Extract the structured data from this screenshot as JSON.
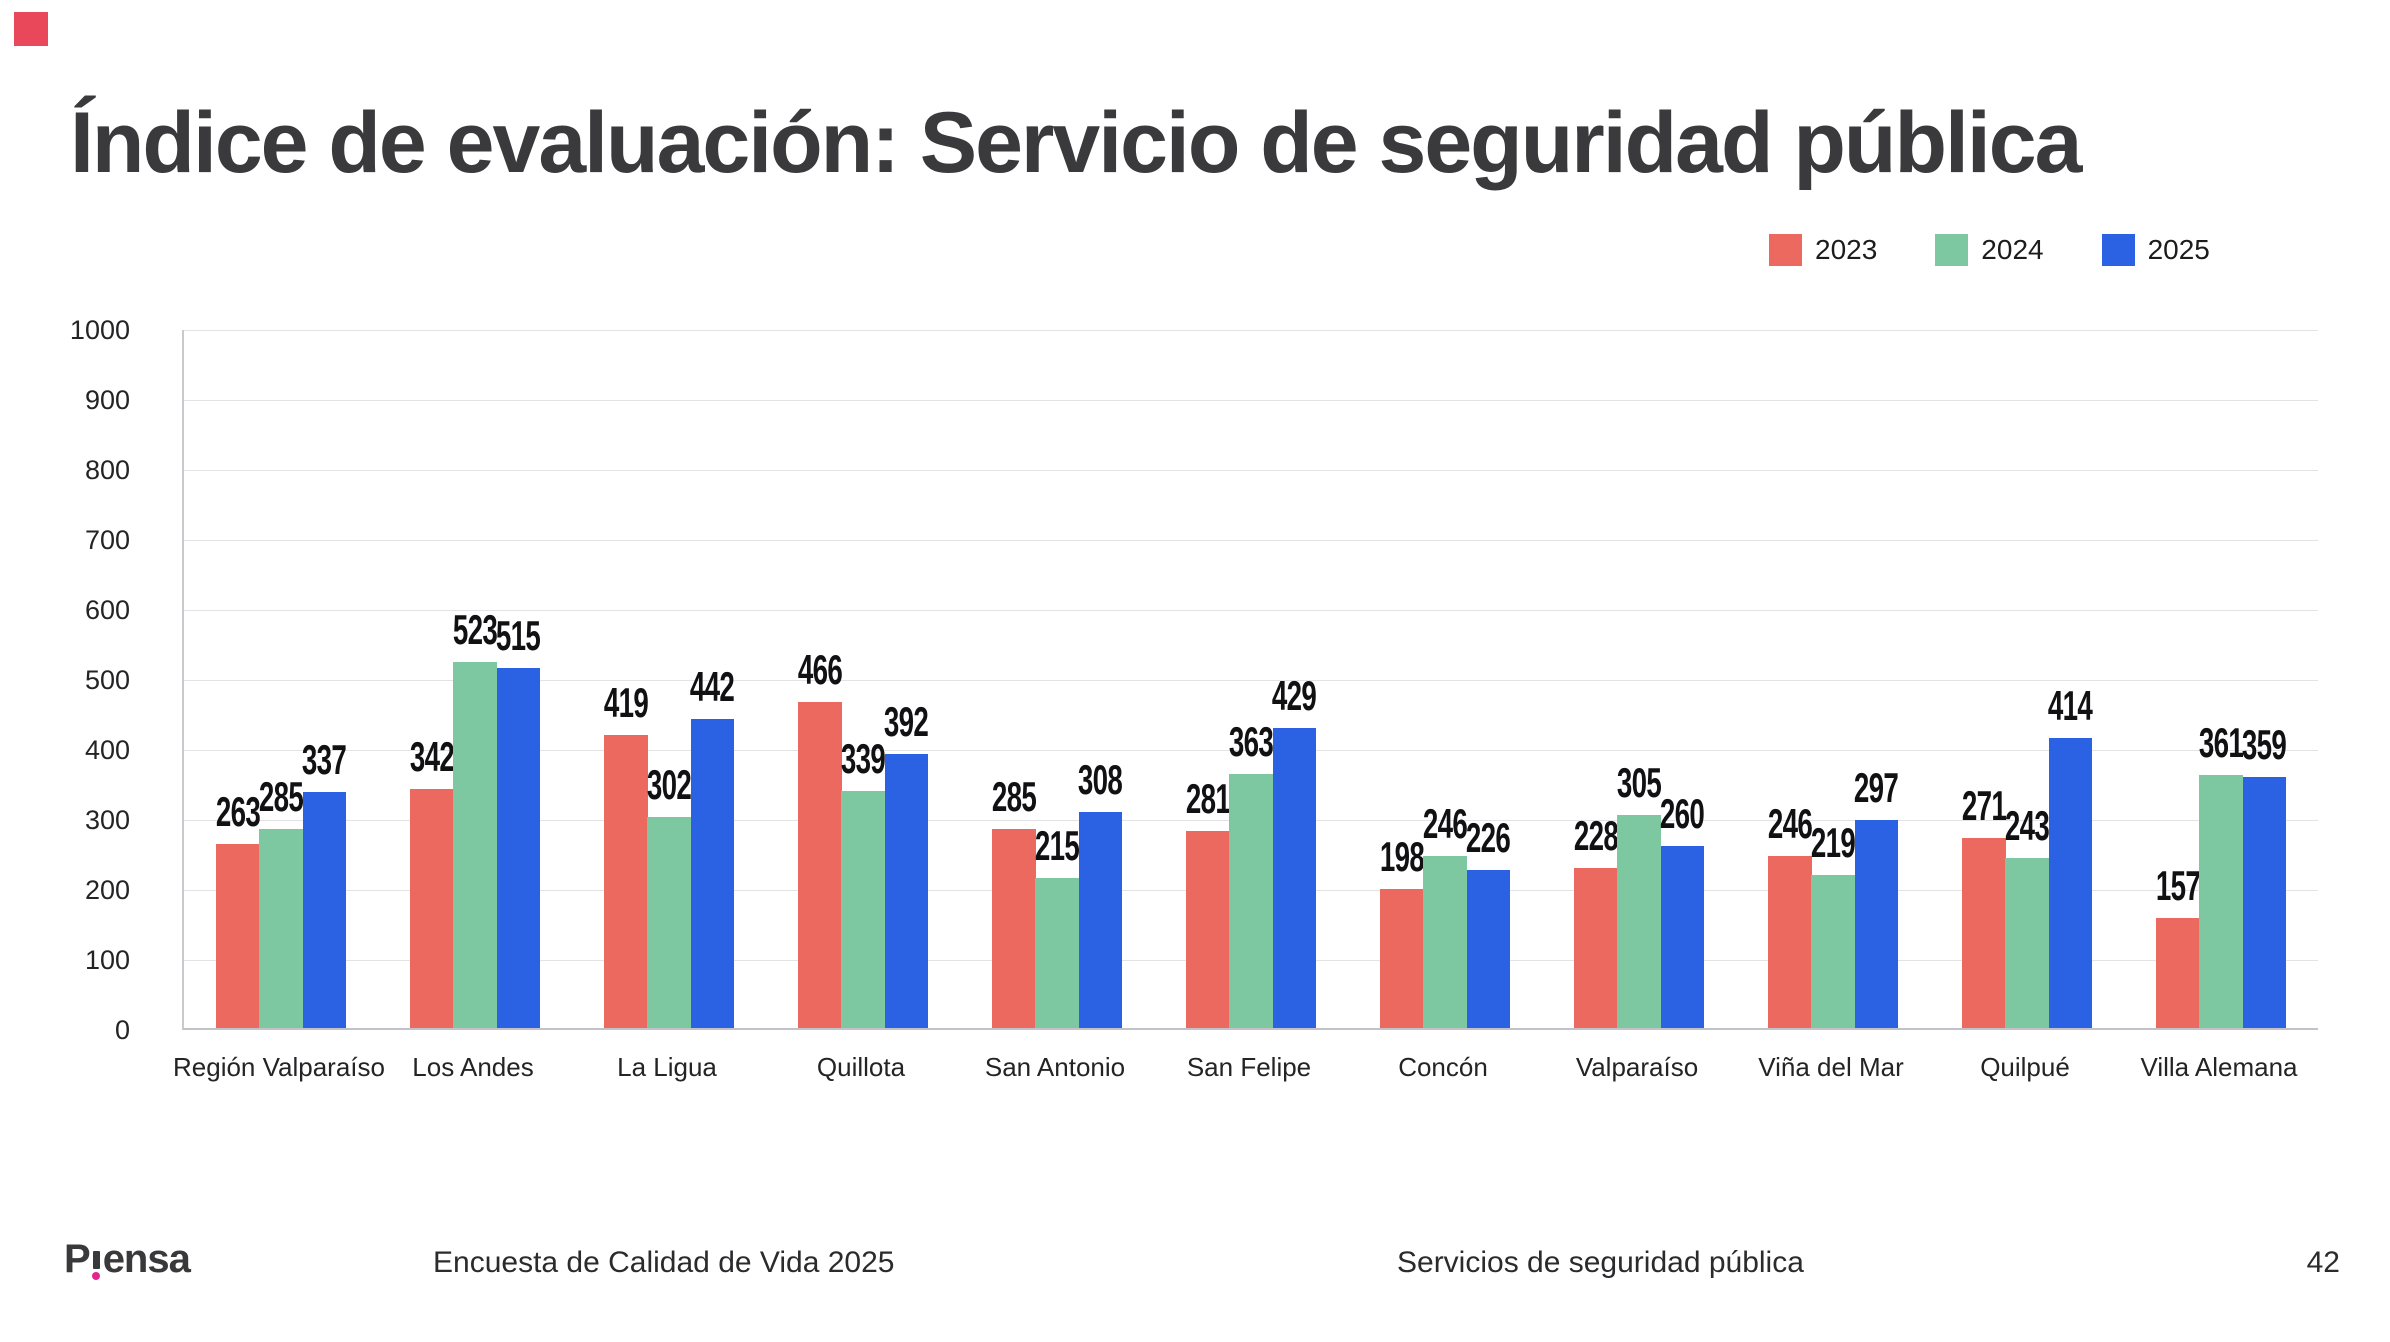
{
  "logo": {
    "mark_color": "#E8485A"
  },
  "title": "Índice de evaluación: Servicio de seguridad pública",
  "legend": [
    {
      "label": "2023",
      "color": "#EB695E"
    },
    {
      "label": "2024",
      "color": "#7EC8A1"
    },
    {
      "label": "2025",
      "color": "#2B62E4"
    }
  ],
  "chart_data": {
    "type": "bar",
    "title": "Índice de evaluación: Servicio de seguridad pública",
    "categories": [
      "Región Valparaíso",
      "Los Andes",
      "La Ligua",
      "Quillota",
      "San Antonio",
      "San Felipe",
      "Concón",
      "Valparaíso",
      "Viña del Mar",
      "Quilpué",
      "Villa Alemana"
    ],
    "series": [
      {
        "name": "2023",
        "color": "#EB695E",
        "values": [
          263,
          342,
          419,
          466,
          285,
          281,
          198,
          228,
          246,
          271,
          157
        ]
      },
      {
        "name": "2024",
        "color": "#7EC8A1",
        "values": [
          285,
          523,
          302,
          339,
          215,
          363,
          246,
          305,
          219,
          243,
          361
        ]
      },
      {
        "name": "2025",
        "color": "#2B62E4",
        "values": [
          337,
          515,
          442,
          392,
          308,
          429,
          226,
          260,
          297,
          414,
          359
        ]
      }
    ],
    "xlabel": "",
    "ylabel": "",
    "ylim": [
      0,
      1000
    ],
    "ytick_step": 100,
    "grid": true,
    "legend_position": "top-right",
    "value_labels": true
  },
  "footer": {
    "brand": "Piensa",
    "brand_prefix": "P",
    "brand_suffix": "ensa",
    "brand_accent": "#E3268F",
    "survey": "Encuesta de Calidad de Vida 2025",
    "section": "Servicios de seguridad pública",
    "page": "42"
  }
}
